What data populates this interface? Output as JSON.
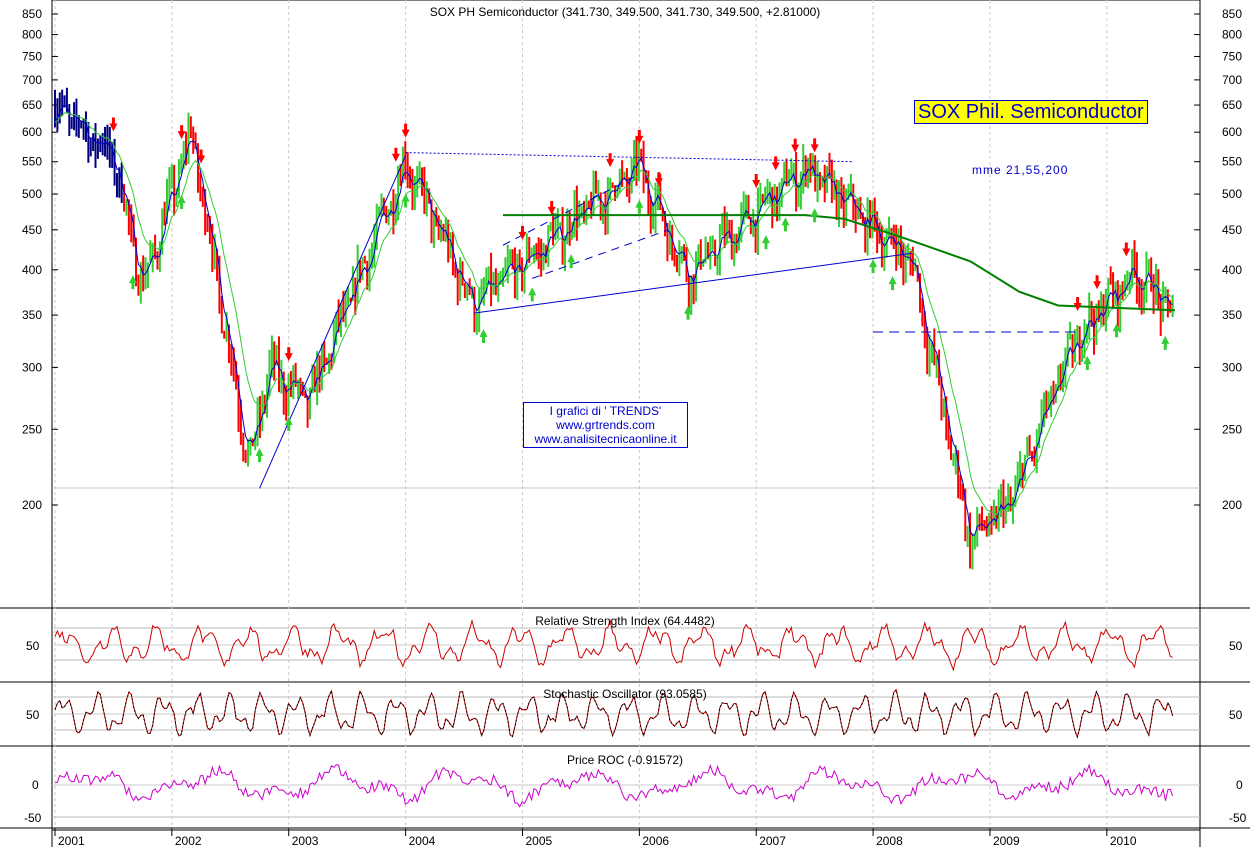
{
  "chart": {
    "title": "SOX PH Semiconductor (341.730, 349.500, 341.730, 349.500, +2.81000)",
    "badge": "SOX Phil. Semiconductor",
    "ma_label": "mme 21,55,200",
    "credit": [
      "I grafici di ' TRENDS'",
      "www.grtrends.com",
      "www.analisitecnicaonline.it"
    ],
    "price_ticks": [
      "850",
      "800",
      "750",
      "700",
      "650",
      "600",
      "550",
      "500",
      "450",
      "400",
      "350",
      "300",
      "250",
      "200"
    ],
    "year_labels": [
      "2001",
      "2002",
      "2003",
      "2004",
      "2005",
      "2006",
      "2007",
      "2008",
      "2009",
      "2010"
    ],
    "rsi_title": "Relative Strength Index (64.4482)",
    "stoch_title": "Stochastic Oscillator (93.0585)",
    "roc_title": "Price ROC (-0.91572)",
    "osc_tick_50": "50",
    "roc_ticks": [
      "0",
      "-50"
    ]
  },
  "colors": {
    "up": "#32cd32",
    "down": "#ff0000",
    "early": "#000080",
    "ma21": "#0000cc",
    "ma55": "#32cd32",
    "ma200": "#008000",
    "rsi": "#cc0000",
    "stoch_k": "#cc0000",
    "stoch_d": "#000000",
    "roc": "#cc00cc",
    "trendline": "#0000cc",
    "grid": "#c8c8c8"
  },
  "chart_data": [
    {
      "type": "line",
      "title": "SOX PH Semiconductor",
      "series": [
        {
          "name": "Close",
          "x": [
            "2001-01",
            "2001-07",
            "2001-10",
            "2002-03",
            "2002-09",
            "2002-11",
            "2003-03",
            "2004-01",
            "2004-08",
            "2005-06",
            "2006-01",
            "2006-06",
            "2007-06",
            "2008-05",
            "2008-11",
            "2009-03",
            "2009-10",
            "2010-04",
            "2010-08"
          ],
          "values": [
            650,
            560,
            380,
            600,
            225,
            300,
            270,
            550,
            360,
            460,
            540,
            395,
            540,
            410,
            180,
            200,
            330,
            400,
            349.5
          ]
        },
        {
          "name": "mme 200",
          "x": [
            "2004-11",
            "2006-01",
            "2007-06",
            "2007-10",
            "2008-04",
            "2008-11",
            "2009-04",
            "2009-08",
            "2010-08"
          ],
          "values": [
            470,
            470,
            470,
            465,
            440,
            410,
            375,
            360,
            355
          ]
        }
      ],
      "ylim": [
        165,
        880
      ],
      "xlim": [
        "2001-01",
        "2010-08"
      ]
    },
    {
      "type": "line",
      "title": "Relative Strength Index (64.4482)",
      "last": 64.4482
    },
    {
      "type": "line",
      "title": "Stochastic Oscillator (93.0585)",
      "last": 93.0585
    },
    {
      "type": "line",
      "title": "Price ROC (-0.91572)",
      "last": -0.91572
    }
  ]
}
